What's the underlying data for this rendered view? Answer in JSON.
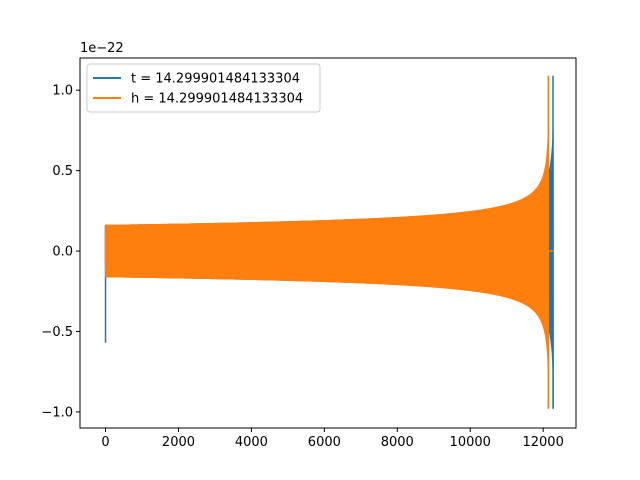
{
  "chart_data": {
    "type": "line",
    "title": "",
    "xlabel": "",
    "ylabel": "",
    "xlim": [
      -700,
      12900
    ],
    "ylim": [
      -1.1,
      1.2
    ],
    "x_ticks": [
      0,
      2000,
      4000,
      6000,
      8000,
      10000,
      12000
    ],
    "x_tick_labels": [
      "0",
      "2000",
      "4000",
      "6000",
      "8000",
      "10000",
      "12000"
    ],
    "y_ticks": [
      -1.0,
      -0.5,
      0.0,
      0.5,
      1.0
    ],
    "y_tick_labels": [
      "−1.0",
      "−0.5",
      "0.0",
      "0.5",
      "1.0"
    ],
    "y_offset_label": "1e−22",
    "grid": false,
    "legend_position": "top-left",
    "series": [
      {
        "name": "t = 14.299901484133304",
        "color": "#1f77b4",
        "kind": "chirp",
        "x_end": 12290,
        "merger_x": 12270,
        "start_amplitude": 0.16,
        "initial_dip": -0.57,
        "peak_positive": 1.09,
        "peak_negative": -0.98
      },
      {
        "name": "h = 14.299901484133304",
        "color": "#ff7f0e",
        "kind": "chirp",
        "x_end": 12290,
        "merger_x": 12140,
        "start_amplitude": 0.16,
        "initial_dip": -0.1,
        "peak_positive": 1.09,
        "peak_negative": -0.98
      }
    ]
  }
}
